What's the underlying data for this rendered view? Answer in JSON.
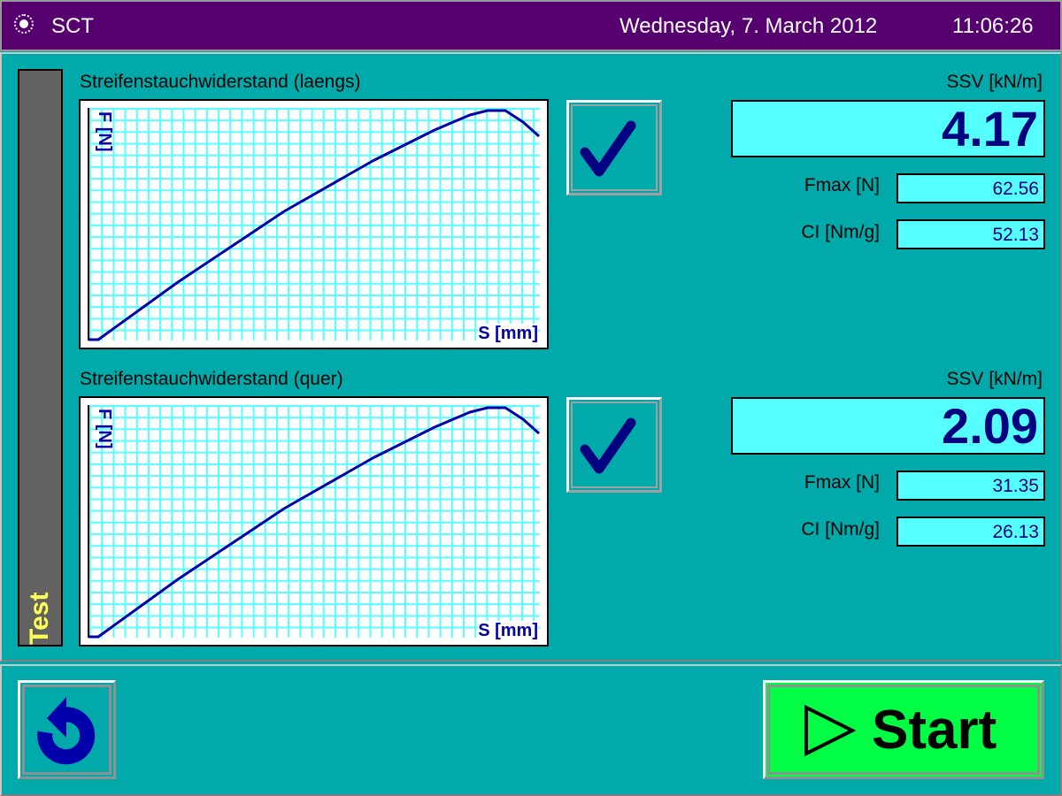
{
  "titlebar": {
    "app_name": "SCT",
    "date": "Wednesday, 7. March 2012",
    "time": "11:06:26",
    "icon": "radio-icon"
  },
  "sidebar": {
    "label": "Test"
  },
  "sections": [
    {
      "title": "Streifenstauchwiderstand (laengs)",
      "y_axis": "F [N]",
      "x_axis": "S [mm]",
      "status_icon": "checkmark-icon",
      "ssv_label": "SSV [kN/m]",
      "ssv_value": "4.17",
      "fmax_label": "Fmax [N]",
      "fmax_value": "62.56",
      "ci_label": "CI [Nm/g]",
      "ci_value": "52.13"
    },
    {
      "title": "Streifenstauchwiderstand (quer)",
      "y_axis": "F [N]",
      "x_axis": "S [mm]",
      "status_icon": "checkmark-icon",
      "ssv_label": "SSV [kN/m]",
      "ssv_value": "2.09",
      "fmax_label": "Fmax [N]",
      "fmax_value": "31.35",
      "ci_label": "CI [Nm/g]",
      "ci_value": "26.13"
    }
  ],
  "footer": {
    "back_icon": "undo-arrow-icon",
    "start_label": "Start",
    "start_icon": "play-triangle-icon"
  },
  "colors": {
    "titlebar": "#560070",
    "background": "#00AAAA",
    "value_box": "#55FFFF",
    "start_button": "#00FF44",
    "curve": "#0000AA",
    "grid": "#55FFFF"
  }
}
